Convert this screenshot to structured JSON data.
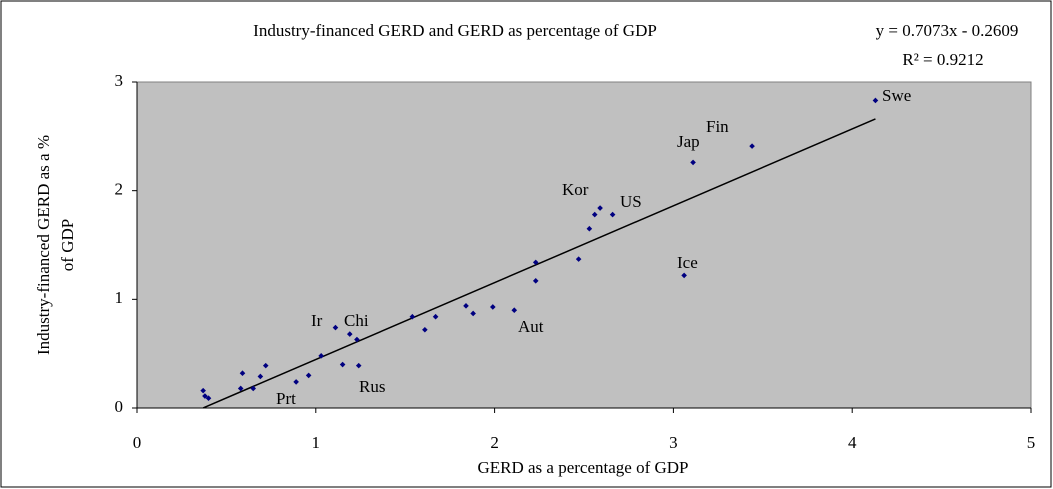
{
  "chart_data": {
    "type": "scatter",
    "title": "Industry-financed GERD and GERD as percentage of GDP",
    "xlabel": "GERD as a percentage of GDP",
    "ylabel": [
      "Industry-financed GERD as a %",
      "of GDP"
    ],
    "x": [
      0.37,
      0.38,
      0.4,
      0.58,
      0.59,
      0.65,
      0.69,
      0.72,
      0.89,
      0.96,
      1.03,
      1.11,
      1.15,
      1.19,
      1.23,
      1.24,
      1.54,
      1.61,
      1.67,
      1.84,
      1.88,
      1.99,
      2.11,
      2.23,
      2.23,
      2.47,
      2.53,
      2.56,
      2.59,
      2.66,
      3.06,
      3.11,
      3.44,
      4.13
    ],
    "values": [
      0.16,
      0.11,
      0.09,
      0.18,
      0.32,
      0.18,
      0.29,
      0.39,
      0.24,
      0.3,
      0.48,
      0.74,
      0.4,
      0.68,
      0.63,
      0.39,
      0.84,
      0.72,
      0.84,
      0.94,
      0.87,
      0.93,
      0.9,
      1.34,
      1.17,
      1.37,
      1.65,
      1.78,
      1.84,
      1.78,
      1.22,
      2.26,
      2.41,
      2.83
    ],
    "color": "#000080",
    "annotations": [
      "Swe",
      "Fin",
      "Jap",
      "Kor",
      "US",
      "Ice",
      "Aut",
      "Ir",
      "Chi",
      "Rus",
      "Prt"
    ],
    "trendline": {
      "slope": 0.7073,
      "intercept": -0.2609,
      "equation": "y = 0.7073x - 0.2609",
      "r_squared": "R² = 0.9212",
      "color": "#000000"
    },
    "xlim": [
      0,
      5
    ],
    "xticks": [
      0,
      1,
      2,
      3,
      4,
      5
    ],
    "ylim": [
      0,
      3
    ],
    "yticks": [
      0,
      1,
      2,
      3
    ],
    "plot_background": "#c0c0c0"
  }
}
